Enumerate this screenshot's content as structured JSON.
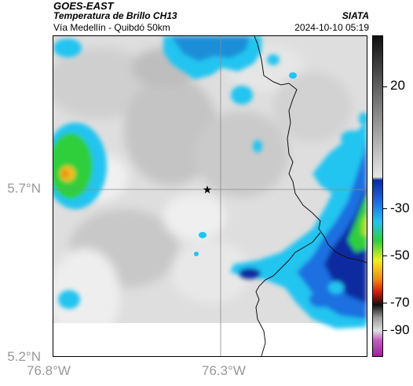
{
  "header": {
    "satellite": "GOES-EAST",
    "product": "Temperatura de Brillo CH13",
    "region": "Vía Medellín - Quibdó 50km",
    "organization": "SIATA",
    "datetime": "2024-10-10 05:19"
  },
  "axes": {
    "y_ticks": [
      "5.7°N",
      "5.2°N"
    ],
    "x_ticks": [
      "76.8°W",
      "76.3°W"
    ]
  },
  "colorbar": {
    "labels": [
      "20",
      "-30",
      "-50",
      "-70",
      "-90"
    ],
    "colors": {
      "warm_top": "#111111",
      "gray": "#9a9a9a",
      "light_gray": "#e6e6e6",
      "dark_blue": "#0a2aa0",
      "blue": "#1f6fe0",
      "cyan": "#21c4f0",
      "green": "#2fcf3a",
      "yellow": "#f0f020",
      "orange": "#f08a10",
      "red": "#d01a10",
      "black": "#101010",
      "magenta": "#c040c0"
    }
  },
  "map": {
    "marker": "star",
    "background_colors": {
      "cloud_light": "#ededed",
      "cloud_mid": "#d4d4d4",
      "cloud_dark": "#bdbdbd",
      "coast": "#000000",
      "grid": "#8a8a8a"
    }
  }
}
